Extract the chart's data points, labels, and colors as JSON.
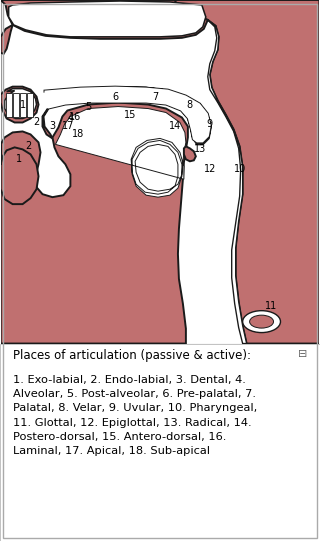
{
  "caption_title": "Places of articulation (passive & active):",
  "caption_body": "1. Exo-labial, 2. Endo-labial, 3. Dental, 4.\nAlveolar, 5. Post-alveolar, 6. Pre-palatal, 7.\nPalatal, 8. Velar, 9. Uvular, 10. Pharyngeal,\n11. Glottal, 12. Epiglottal, 13. Radical, 14.\nPostero-dorsal, 15. Antero-dorsal, 16.\nLaminal, 17. Apical, 18. Sub-apical",
  "bg_color": "#ffffff",
  "flesh_color": "#c07070",
  "outline_color": "#1a1a1a",
  "border_color": "#aaaaaa",
  "diagram_ratio": 0.635
}
